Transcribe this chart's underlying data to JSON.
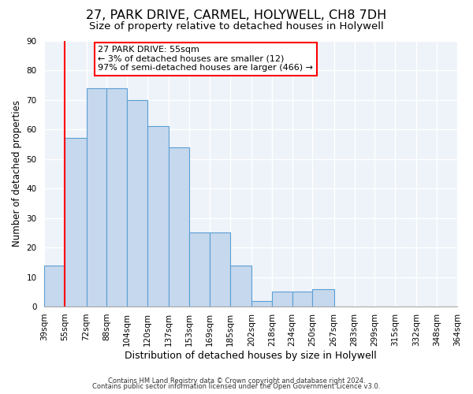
{
  "title": "27, PARK DRIVE, CARMEL, HOLYWELL, CH8 7DH",
  "subtitle": "Size of property relative to detached houses in Holywell",
  "xlabel": "Distribution of detached houses by size in Holywell",
  "ylabel": "Number of detached properties",
  "bin_edges": [
    39,
    55,
    72,
    88,
    104,
    120,
    137,
    153,
    169,
    185,
    202,
    218,
    234,
    250,
    267,
    283,
    299,
    315,
    332,
    348,
    364
  ],
  "bar_heights": [
    14,
    57,
    74,
    74,
    70,
    61,
    54,
    25,
    25,
    14,
    2,
    5,
    5,
    6,
    0,
    0,
    0,
    0,
    0,
    0
  ],
  "bar_color": "#c5d8ed",
  "bar_edge_color": "#5a9fd4",
  "bar_edge_width": 0.8,
  "red_line_x": 55,
  "ylim": [
    0,
    90
  ],
  "yticks": [
    0,
    10,
    20,
    30,
    40,
    50,
    60,
    70,
    80,
    90
  ],
  "annotation_title": "27 PARK DRIVE: 55sqm",
  "annotation_line1": "← 3% of detached houses are smaller (12)",
  "annotation_line2": "97% of semi-detached houses are larger (466) →",
  "footer1": "Contains HM Land Registry data © Crown copyright and database right 2024.",
  "footer2": "Contains public sector information licensed under the Open Government Licence v3.0.",
  "bg_color": "#eef3f9",
  "grid_color": "#ffffff",
  "title_fontsize": 11.5,
  "subtitle_fontsize": 9.5,
  "ylabel_fontsize": 8.5,
  "xlabel_fontsize": 9,
  "footer_fontsize": 6,
  "annot_fontsize": 8,
  "tick_fontsize": 7.5
}
